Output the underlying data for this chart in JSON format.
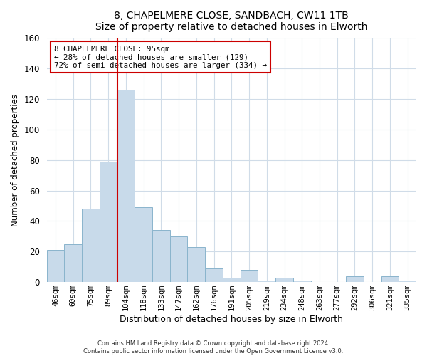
{
  "title": "8, CHAPELMERE CLOSE, SANDBACH, CW11 1TB",
  "subtitle": "Size of property relative to detached houses in Elworth",
  "xlabel": "Distribution of detached houses by size in Elworth",
  "ylabel": "Number of detached properties",
  "bar_labels": [
    "46sqm",
    "60sqm",
    "75sqm",
    "89sqm",
    "104sqm",
    "118sqm",
    "133sqm",
    "147sqm",
    "162sqm",
    "176sqm",
    "191sqm",
    "205sqm",
    "219sqm",
    "234sqm",
    "248sqm",
    "263sqm",
    "277sqm",
    "292sqm",
    "306sqm",
    "321sqm",
    "335sqm"
  ],
  "bar_values": [
    21,
    25,
    48,
    79,
    126,
    49,
    34,
    30,
    23,
    9,
    3,
    8,
    1,
    3,
    1,
    0,
    0,
    4,
    0,
    4,
    1
  ],
  "bar_color": "#c8daea",
  "bar_edge_color": "#8ab4cc",
  "vline_color": "#cc0000",
  "annotation_text": "8 CHAPELMERE CLOSE: 95sqm\n← 28% of detached houses are smaller (129)\n72% of semi-detached houses are larger (334) →",
  "annotation_box_facecolor": "#ffffff",
  "annotation_box_edgecolor": "#cc0000",
  "ylim": [
    0,
    160
  ],
  "yticks": [
    0,
    20,
    40,
    60,
    80,
    100,
    120,
    140,
    160
  ],
  "footer1": "Contains HM Land Registry data © Crown copyright and database right 2024.",
  "footer2": "Contains public sector information licensed under the Open Government Licence v3.0.",
  "bg_color": "#ffffff",
  "plot_bg_color": "#ffffff",
  "grid_color": "#d0dce8"
}
